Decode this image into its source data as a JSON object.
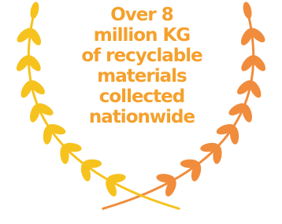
{
  "badge": {
    "lines": [
      "Over 8",
      "million KG",
      "of recyclable",
      "materials",
      "collected",
      "nationwide"
    ]
  }
}
